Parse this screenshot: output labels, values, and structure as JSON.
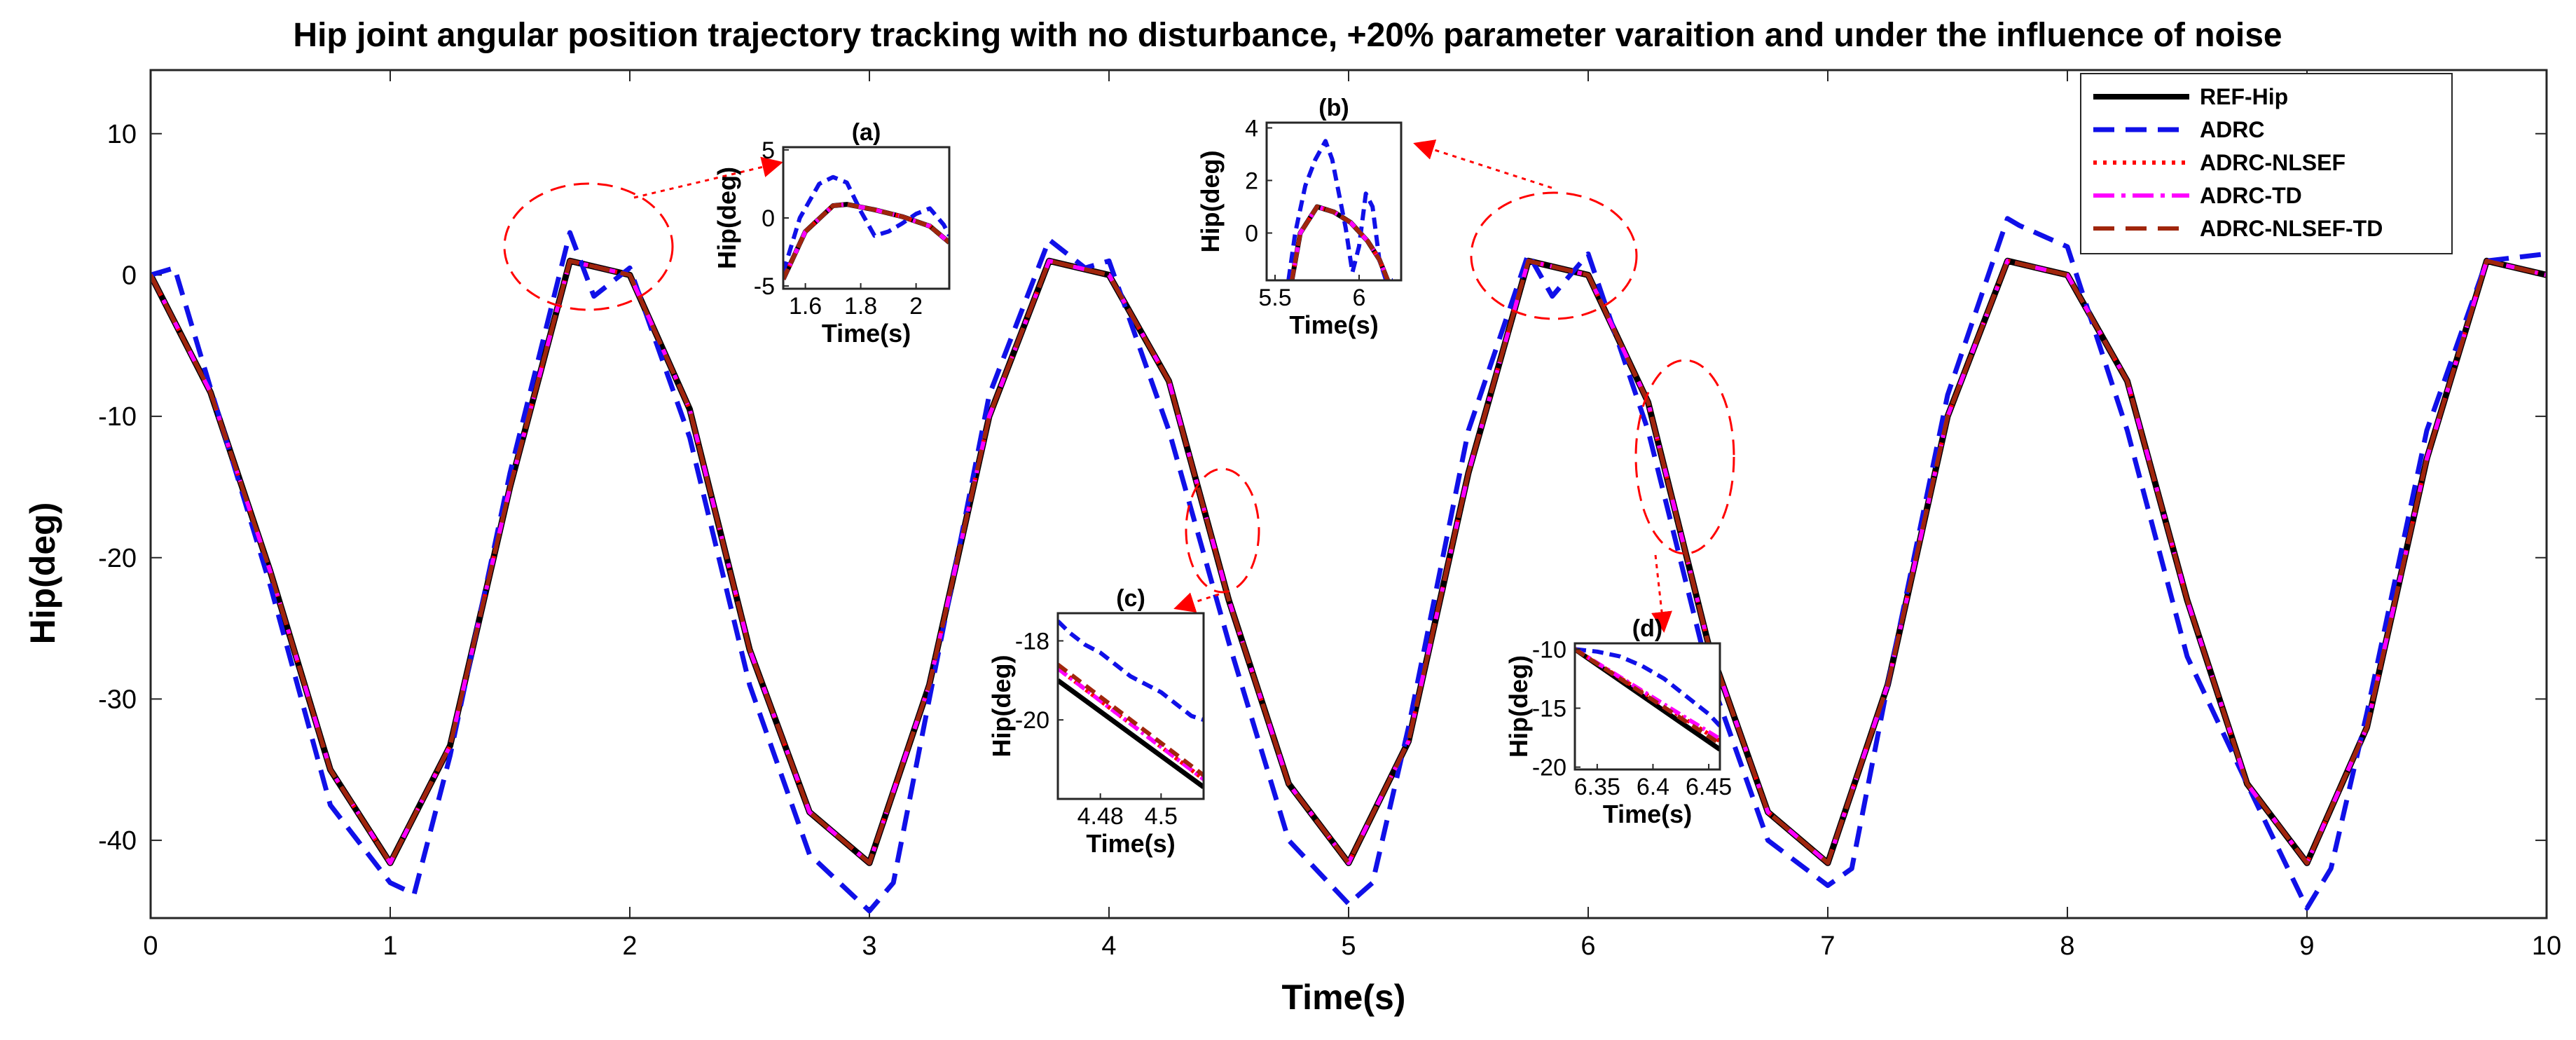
{
  "chart_data": {
    "type": "line",
    "title": "Hip joint angular position trajectory tracking with no disturbance, +20% parameter varaition and under the influence of noise",
    "xlabel": "Time(s)",
    "ylabel": "Hip(deg)",
    "xlim": [
      0,
      10
    ],
    "ylim": [
      -45.5,
      14.5
    ],
    "xticks": [
      0,
      1,
      2,
      3,
      4,
      5,
      6,
      7,
      8,
      9,
      10
    ],
    "yticks": [
      10,
      0,
      -10,
      -20,
      -30,
      -40
    ],
    "grid": false,
    "legend_position": "top-right",
    "series": [
      {
        "name": "REF-Hip",
        "color": "#000000",
        "style": "solid",
        "x": [
          0,
          0.25,
          0.5,
          0.75,
          1.0,
          1.25,
          1.5,
          1.75,
          2.0,
          2.25,
          2.5,
          2.75,
          3.0,
          3.25,
          3.5,
          3.75,
          4.0,
          4.25,
          4.5,
          4.75,
          5.0,
          5.25,
          5.5,
          5.75,
          6.0,
          6.25,
          6.5,
          6.75,
          7.0,
          7.25,
          7.5,
          7.75,
          8.0,
          8.25,
          8.5,
          8.75,
          9.0,
          9.25,
          9.5,
          9.75,
          10.0
        ],
        "y": [
          0.0,
          -8.3,
          -21.0,
          -35.0,
          -41.6,
          -33.3,
          -15.0,
          1.0,
          0.0,
          -9.5,
          -26.5,
          -38.0,
          -41.6,
          -29.0,
          -10.0,
          1.0,
          0.0,
          -7.5,
          -23.0,
          -36.0,
          -41.6,
          -33.0,
          -14.0,
          1.0,
          0.0,
          -9.0,
          -26.0,
          -38.0,
          -41.6,
          -29.0,
          -10.0,
          1.0,
          0.0,
          -7.5,
          -23.0,
          -36.0,
          -41.6,
          -32.0,
          -13.0,
          1.0,
          0.0
        ]
      },
      {
        "name": "ADRC",
        "color": "#1010e8",
        "style": "dashed",
        "x": [
          0,
          0.1,
          0.25,
          0.5,
          0.75,
          1.0,
          1.1,
          1.25,
          1.5,
          1.75,
          1.85,
          2.0,
          2.25,
          2.5,
          2.75,
          3.0,
          3.1,
          3.25,
          3.5,
          3.75,
          3.9,
          4.0,
          4.25,
          4.5,
          4.75,
          5.0,
          5.1,
          5.25,
          5.5,
          5.75,
          5.85,
          6.0,
          6.25,
          6.5,
          6.75,
          7.0,
          7.1,
          7.25,
          7.5,
          7.75,
          7.8,
          8.0,
          8.25,
          8.5,
          8.75,
          9.0,
          9.1,
          9.25,
          9.5,
          9.75,
          10.0
        ],
        "y": [
          0.0,
          0.5,
          -8.0,
          -22.0,
          -37.5,
          -43.0,
          -43.8,
          -34.0,
          -14.0,
          3.0,
          -1.5,
          0.5,
          -11.5,
          -29.0,
          -41.0,
          -45.0,
          -43.0,
          -30.0,
          -8.5,
          2.5,
          0.5,
          1.0,
          -11.0,
          -26.0,
          -40.0,
          -44.5,
          -43.0,
          -32.0,
          -11.0,
          1.5,
          -1.5,
          1.5,
          -11.0,
          -28.0,
          -40.0,
          -43.2,
          -42.0,
          -29.0,
          -8.5,
          4.0,
          3.5,
          2.0,
          -11.0,
          -27.0,
          -36.0,
          -44.8,
          -42.0,
          -31.0,
          -11.0,
          1.0,
          1.5
        ]
      },
      {
        "name": "ADRC-NLSEF",
        "color": "#ff0000",
        "style": "dotted",
        "x": [
          0,
          0.25,
          0.5,
          0.75,
          1.0,
          1.25,
          1.5,
          1.75,
          2.0,
          2.25,
          2.5,
          2.75,
          3.0,
          3.25,
          3.5,
          3.75,
          4.0,
          4.25,
          4.5,
          4.75,
          5.0,
          5.25,
          5.5,
          5.75,
          6.0,
          6.25,
          6.5,
          6.75,
          7.0,
          7.25,
          7.5,
          7.75,
          8.0,
          8.25,
          8.5,
          8.75,
          9.0,
          9.25,
          9.5,
          9.75,
          10.0
        ],
        "y": [
          0.0,
          -8.3,
          -21.0,
          -35.0,
          -41.6,
          -33.3,
          -15.0,
          1.0,
          0.0,
          -9.5,
          -26.5,
          -38.0,
          -41.6,
          -29.0,
          -10.0,
          1.0,
          0.0,
          -7.5,
          -23.0,
          -36.0,
          -41.6,
          -33.0,
          -14.0,
          1.0,
          0.0,
          -9.0,
          -26.0,
          -38.0,
          -41.6,
          -29.0,
          -10.0,
          1.0,
          0.0,
          -7.5,
          -23.0,
          -36.0,
          -41.6,
          -32.0,
          -13.0,
          1.0,
          0.0
        ]
      },
      {
        "name": "ADRC-TD",
        "color": "#ff00ff",
        "style": "dashdot",
        "x": [
          0,
          0.25,
          0.5,
          0.75,
          1.0,
          1.25,
          1.5,
          1.75,
          2.0,
          2.25,
          2.5,
          2.75,
          3.0,
          3.25,
          3.5,
          3.75,
          4.0,
          4.25,
          4.5,
          4.75,
          5.0,
          5.25,
          5.5,
          5.75,
          6.0,
          6.25,
          6.5,
          6.75,
          7.0,
          7.25,
          7.5,
          7.75,
          8.0,
          8.25,
          8.5,
          8.75,
          9.0,
          9.25,
          9.5,
          9.75,
          10.0
        ],
        "y": [
          0.0,
          -8.3,
          -21.0,
          -35.0,
          -41.6,
          -33.3,
          -15.0,
          1.0,
          0.0,
          -9.5,
          -26.5,
          -38.0,
          -41.6,
          -29.0,
          -10.0,
          1.0,
          0.0,
          -7.5,
          -23.0,
          -36.0,
          -41.6,
          -33.0,
          -14.0,
          1.0,
          0.0,
          -9.0,
          -26.0,
          -38.0,
          -41.6,
          -29.0,
          -10.0,
          1.0,
          0.0,
          -7.5,
          -23.0,
          -36.0,
          -41.6,
          -32.0,
          -13.0,
          1.0,
          0.0
        ]
      },
      {
        "name": "ADRC-NLSEF-TD",
        "color": "#a0260c",
        "style": "dashed",
        "x": [
          0,
          0.25,
          0.5,
          0.75,
          1.0,
          1.25,
          1.5,
          1.75,
          2.0,
          2.25,
          2.5,
          2.75,
          3.0,
          3.25,
          3.5,
          3.75,
          4.0,
          4.25,
          4.5,
          4.75,
          5.0,
          5.25,
          5.5,
          5.75,
          6.0,
          6.25,
          6.5,
          6.75,
          7.0,
          7.25,
          7.5,
          7.75,
          8.0,
          8.25,
          8.5,
          8.75,
          9.0,
          9.25,
          9.5,
          9.75,
          10.0
        ],
        "y": [
          0.0,
          -8.3,
          -21.0,
          -35.0,
          -41.6,
          -33.3,
          -15.0,
          1.0,
          0.0,
          -9.5,
          -26.5,
          -38.0,
          -41.6,
          -29.0,
          -10.0,
          1.0,
          0.0,
          -7.5,
          -23.0,
          -36.0,
          -41.6,
          -33.0,
          -14.0,
          1.0,
          0.0,
          -9.0,
          -26.0,
          -38.0,
          -41.6,
          -29.0,
          -10.0,
          1.0,
          0.0,
          -7.5,
          -23.0,
          -36.0,
          -41.6,
          -32.0,
          -13.0,
          1.0,
          0.0
        ]
      }
    ],
    "insets": [
      {
        "label": "(a)",
        "xlabel": "Time(s)",
        "ylabel": "Hip(deg)",
        "xlim": [
          1.52,
          2.12
        ],
        "ylim": [
          -5.2,
          5.2
        ],
        "xticks": [
          1.6,
          1.8,
          2
        ],
        "xtick_labels": [
          "1.6",
          "1.8",
          "2"
        ],
        "yticks": [
          5,
          0,
          -5
        ],
        "ytick_labels": [
          "5",
          "0",
          "-5"
        ],
        "series": [
          {
            "name": "REF-Hip",
            "x": [
              1.52,
              1.6,
              1.7,
              1.75,
              1.85,
              1.95,
              2.05,
              2.12
            ],
            "y": [
              -4.5,
              -1.0,
              0.9,
              1.0,
              0.6,
              0.1,
              -0.6,
              -1.8
            ]
          },
          {
            "name": "ADRC",
            "x": [
              1.52,
              1.58,
              1.65,
              1.7,
              1.75,
              1.8,
              1.85,
              1.9,
              1.95,
              2.0,
              2.05,
              2.1,
              2.12
            ],
            "y": [
              -4.0,
              0.0,
              2.5,
              3.0,
              2.6,
              0.5,
              -1.3,
              -1.0,
              -0.4,
              0.3,
              0.7,
              -0.5,
              -1.3
            ]
          },
          {
            "name": "ADRC-NLSEF",
            "x": [
              1.52,
              1.6,
              1.7,
              1.75,
              1.85,
              1.95,
              2.05,
              2.12
            ],
            "y": [
              -4.5,
              -1.0,
              0.9,
              1.0,
              0.6,
              0.1,
              -0.6,
              -1.8
            ]
          },
          {
            "name": "ADRC-TD",
            "x": [
              1.52,
              1.6,
              1.7,
              1.75,
              1.85,
              1.95,
              2.05,
              2.12
            ],
            "y": [
              -4.5,
              -1.0,
              0.9,
              1.0,
              0.6,
              0.1,
              -0.6,
              -1.8
            ]
          },
          {
            "name": "ADRC-NLSEF-TD",
            "x": [
              1.52,
              1.6,
              1.7,
              1.75,
              1.85,
              1.95,
              2.05,
              2.12
            ],
            "y": [
              -4.5,
              -1.0,
              0.9,
              1.0,
              0.6,
              0.1,
              -0.6,
              -1.8
            ]
          }
        ]
      },
      {
        "label": "(b)",
        "xlabel": "Time(s)",
        "ylabel": "Hip(deg)",
        "xlim": [
          5.45,
          6.25
        ],
        "ylim": [
          -1.8,
          4.2
        ],
        "xticks": [
          5.5,
          6
        ],
        "xtick_labels": [
          "5.5",
          "6"
        ],
        "yticks": [
          4,
          2,
          0
        ],
        "ytick_labels": [
          "4",
          "2",
          "0"
        ],
        "series": [
          {
            "name": "REF-Hip",
            "x": [
              5.6,
              5.65,
              5.75,
              5.85,
              5.95,
              6.05,
              6.12,
              6.17
            ],
            "y": [
              -1.8,
              0.0,
              1.0,
              0.8,
              0.4,
              -0.3,
              -1.0,
              -1.8
            ]
          },
          {
            "name": "ADRC",
            "x": [
              5.58,
              5.62,
              5.68,
              5.74,
              5.8,
              5.84,
              5.88,
              5.92,
              5.96,
              6.0,
              6.04,
              6.08,
              6.12,
              6.16,
              6.2
            ],
            "y": [
              -1.8,
              0.0,
              1.8,
              2.8,
              3.5,
              2.8,
              1.5,
              0.2,
              -1.5,
              -0.5,
              1.5,
              1.0,
              -1.0,
              -1.8,
              -1.8
            ]
          },
          {
            "name": "ADRC-NLSEF",
            "x": [
              5.6,
              5.65,
              5.75,
              5.85,
              5.95,
              6.05,
              6.12,
              6.17
            ],
            "y": [
              -1.8,
              0.0,
              1.0,
              0.8,
              0.4,
              -0.3,
              -1.0,
              -1.8
            ]
          },
          {
            "name": "ADRC-TD",
            "x": [
              5.6,
              5.65,
              5.75,
              5.85,
              5.95,
              6.05,
              6.12,
              6.17
            ],
            "y": [
              -1.8,
              0.0,
              1.0,
              0.8,
              0.4,
              -0.3,
              -1.0,
              -1.8
            ]
          },
          {
            "name": "ADRC-NLSEF-TD",
            "x": [
              5.6,
              5.65,
              5.75,
              5.85,
              5.95,
              6.05,
              6.12,
              6.17
            ],
            "y": [
              -1.8,
              0.0,
              1.0,
              0.8,
              0.4,
              -0.3,
              -1.0,
              -1.8
            ]
          }
        ]
      },
      {
        "label": "(c)",
        "xlabel": "Time(s)",
        "ylabel": "Hip(deg)",
        "xlim": [
          4.466,
          4.514
        ],
        "ylim": [
          -22.0,
          -17.3
        ],
        "xticks": [
          4.48,
          4.5
        ],
        "xtick_labels": [
          "4.48",
          "4.5"
        ],
        "yticks": [
          -18,
          -20
        ],
        "ytick_labels": [
          "-18",
          "-20"
        ],
        "series": [
          {
            "name": "REF-Hip",
            "x": [
              4.466,
              4.514
            ],
            "y": [
              -19.0,
              -21.7
            ]
          },
          {
            "name": "ADRC",
            "x": [
              4.466,
              4.47,
              4.475,
              4.48,
              4.485,
              4.49,
              4.495,
              4.5,
              4.505,
              4.51,
              4.514
            ],
            "y": [
              -17.5,
              -17.8,
              -18.1,
              -18.3,
              -18.6,
              -18.9,
              -19.1,
              -19.3,
              -19.6,
              -19.9,
              -20.0
            ]
          },
          {
            "name": "ADRC-NLSEF",
            "x": [
              4.466,
              4.514
            ],
            "y": [
              -18.7,
              -21.5
            ]
          },
          {
            "name": "ADRC-TD",
            "x": [
              4.466,
              4.514
            ],
            "y": [
              -18.7,
              -21.5
            ]
          },
          {
            "name": "ADRC-NLSEF-TD",
            "x": [
              4.466,
              4.514
            ],
            "y": [
              -18.6,
              -21.4
            ]
          }
        ]
      },
      {
        "label": "(d)",
        "xlabel": "Time(s)",
        "ylabel": "Hip(deg)",
        "xlim": [
          6.33,
          6.46
        ],
        "ylim": [
          -20.2,
          -9.5
        ],
        "xticks": [
          6.35,
          6.4,
          6.45
        ],
        "xtick_labels": [
          "6.35",
          "6.4",
          "6.45"
        ],
        "yticks": [
          -10,
          -15,
          -20
        ],
        "ytick_labels": [
          "-10",
          "-15",
          "-20"
        ],
        "series": [
          {
            "name": "REF-Hip",
            "x": [
              6.33,
              6.46
            ],
            "y": [
              -10.0,
              -18.5
            ]
          },
          {
            "name": "ADRC",
            "x": [
              6.33,
              6.35,
              6.37,
              6.39,
              6.41,
              6.43,
              6.45,
              6.46
            ],
            "y": [
              -10.0,
              -10.2,
              -10.6,
              -11.4,
              -12.5,
              -14.0,
              -15.5,
              -16.5
            ]
          },
          {
            "name": "ADRC-NLSEF",
            "x": [
              6.33,
              6.46
            ],
            "y": [
              -10.0,
              -17.8
            ]
          },
          {
            "name": "ADRC-TD",
            "x": [
              6.33,
              6.46
            ],
            "y": [
              -10.0,
              -17.6
            ]
          },
          {
            "name": "ADRC-NLSEF-TD",
            "x": [
              6.33,
              6.46
            ],
            "y": [
              -10.0,
              -18.0
            ]
          }
        ]
      }
    ]
  }
}
